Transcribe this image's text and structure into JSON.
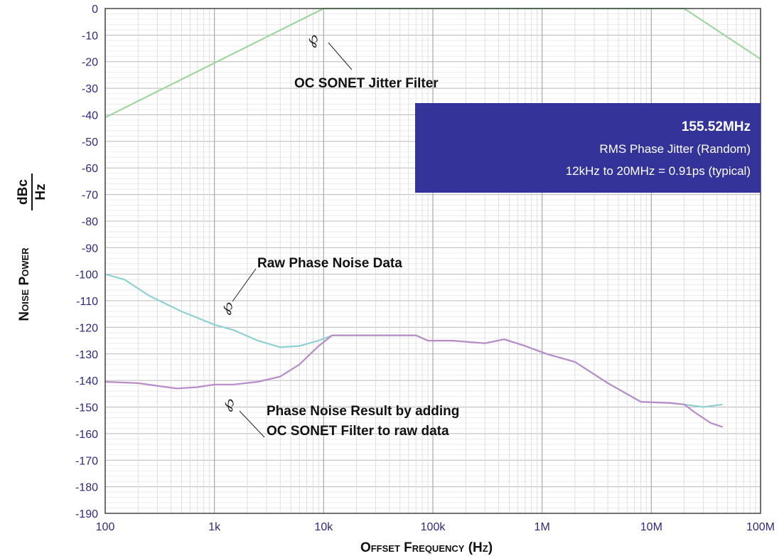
{
  "chart_data": {
    "type": "line",
    "xscale": "log",
    "xlim": [
      100,
      100000000
    ],
    "ylim": [
      -190,
      0
    ],
    "xlabel": "Offset Frequency (Hz)",
    "ylabel": "Noise Power",
    "yunit_num": "dBc",
    "yunit_den": "Hz",
    "x_ticks": [
      {
        "v": 100,
        "label": "100"
      },
      {
        "v": 1000,
        "label": "1k"
      },
      {
        "v": 10000,
        "label": "10k"
      },
      {
        "v": 100000,
        "label": "100k"
      },
      {
        "v": 1000000,
        "label": "1M"
      },
      {
        "v": 10000000,
        "label": "10M"
      },
      {
        "v": 100000000,
        "label": "100M"
      }
    ],
    "y_ticks": [
      0,
      -10,
      -20,
      -30,
      -40,
      -50,
      -60,
      -70,
      -80,
      -90,
      -100,
      -110,
      -120,
      -130,
      -140,
      -150,
      -160,
      -170,
      -180,
      -190
    ],
    "grid": true,
    "series": [
      {
        "id": "jitter-filter",
        "color": "#9dd79d",
        "points": [
          [
            100,
            -41
          ],
          [
            10000,
            0
          ],
          [
            20000000,
            0
          ],
          [
            100000000,
            -19
          ]
        ]
      },
      {
        "id": "raw-phase-noise",
        "color": "#8fd0d0",
        "points": [
          [
            100,
            -100
          ],
          [
            150,
            -102
          ],
          [
            250,
            -108
          ],
          [
            500,
            -114
          ],
          [
            1000,
            -119
          ],
          [
            1500,
            -121
          ],
          [
            2500,
            -125
          ],
          [
            4000,
            -127.5
          ],
          [
            6000,
            -127
          ],
          [
            9000,
            -125
          ],
          [
            12000,
            -123
          ],
          [
            20000,
            -123
          ],
          [
            50000,
            -123
          ],
          [
            70000,
            -123
          ],
          [
            90000,
            -125
          ],
          [
            150000,
            -125
          ],
          [
            300000,
            -126
          ],
          [
            450000,
            -124.5
          ],
          [
            700000,
            -127
          ],
          [
            1100000,
            -130
          ],
          [
            2000000,
            -133
          ],
          [
            4000000,
            -141
          ],
          [
            8000000,
            -148
          ],
          [
            15000000,
            -148.5
          ],
          [
            20000000,
            -149
          ],
          [
            30000000,
            -150
          ],
          [
            45000000,
            -149
          ]
        ]
      },
      {
        "id": "filtered-phase-noise",
        "color": "#b98cc9",
        "points": [
          [
            100,
            -140.5
          ],
          [
            200,
            -141
          ],
          [
            300,
            -142
          ],
          [
            450,
            -143
          ],
          [
            700,
            -142.5
          ],
          [
            1000,
            -141.5
          ],
          [
            1500,
            -141.5
          ],
          [
            2500,
            -140.5
          ],
          [
            4000,
            -138.5
          ],
          [
            6000,
            -134
          ],
          [
            9000,
            -127
          ],
          [
            12000,
            -123
          ],
          [
            20000,
            -123
          ],
          [
            50000,
            -123
          ],
          [
            70000,
            -123
          ],
          [
            90000,
            -125
          ],
          [
            150000,
            -125
          ],
          [
            300000,
            -126
          ],
          [
            450000,
            -124.5
          ],
          [
            700000,
            -127
          ],
          [
            1100000,
            -130
          ],
          [
            2000000,
            -133
          ],
          [
            4000000,
            -141
          ],
          [
            8000000,
            -148
          ],
          [
            15000000,
            -148.5
          ],
          [
            20000000,
            -149
          ],
          [
            25000000,
            -152
          ],
          [
            35000000,
            -156
          ],
          [
            45000000,
            -157.5
          ]
        ]
      }
    ],
    "annotations": {
      "jitter_filter_label": "OC SONET Jitter Filter",
      "raw_label": "Raw Phase Noise Data",
      "result_label_line1": "Phase Noise Result by adding",
      "result_label_line2": "OC SONET Filter to raw data"
    },
    "info_box": {
      "title": "155.52MHz",
      "line1": "RMS Phase Jitter  (Random)",
      "line2": "12kHz to 20MHz = 0.91ps (typical)",
      "bg_color": "#33339a"
    }
  }
}
